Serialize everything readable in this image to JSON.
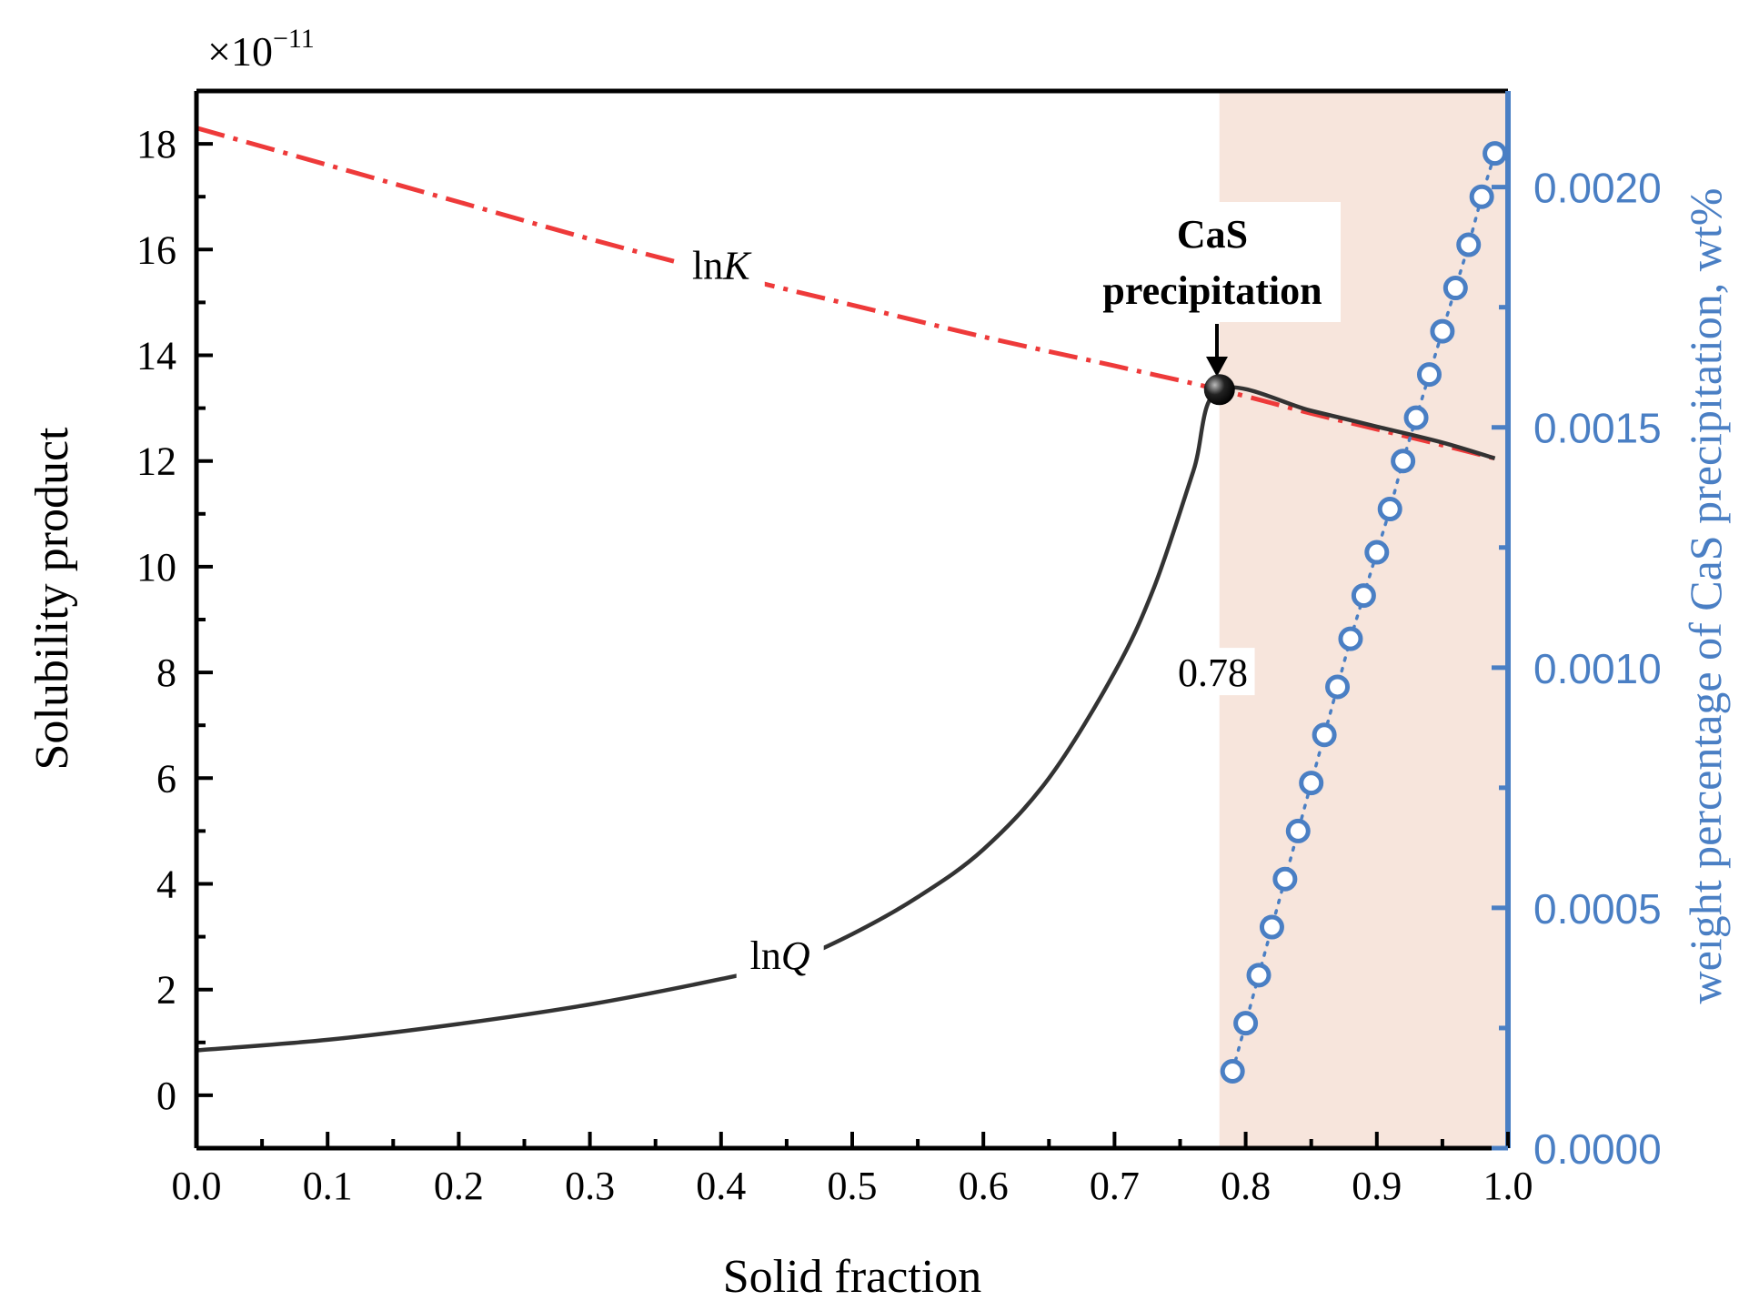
{
  "chart_data": {
    "type": "line",
    "title": "",
    "xlabel": "Solid fraction",
    "ylabel": "Solubility product",
    "ylabel_right": "weight percentage of CaS precipitation, wt%",
    "y_exponent_base": "×10",
    "y_exponent_power": "−11",
    "xlim": [
      0.0,
      1.0
    ],
    "ylim": [
      -1,
      19
    ],
    "ylim_right": [
      0.0,
      0.0022
    ],
    "x_ticks": [
      "0.0",
      "0.1",
      "0.2",
      "0.3",
      "0.4",
      "0.5",
      "0.6",
      "0.7",
      "0.8",
      "0.9",
      "1.0"
    ],
    "x_tick_values": [
      0.0,
      0.1,
      0.2,
      0.3,
      0.4,
      0.5,
      0.6,
      0.7,
      0.8,
      0.9,
      1.0
    ],
    "y_ticks": [
      "0",
      "2",
      "4",
      "6",
      "8",
      "10",
      "12",
      "14",
      "16",
      "18"
    ],
    "y_tick_values": [
      0,
      2,
      4,
      6,
      8,
      10,
      12,
      14,
      16,
      18
    ],
    "y_right_ticks": [
      "0.0000",
      "0.0005",
      "0.0010",
      "0.0015",
      "0.0020"
    ],
    "y_right_tick_values": [
      0.0,
      0.0005,
      0.001,
      0.0015,
      0.002
    ],
    "shaded_region": {
      "x_start": 0.78,
      "x_end": 1.0,
      "color": "#f7e5dc"
    },
    "series": [
      {
        "name": "lnK",
        "label_text": "ln",
        "label_italic": "K",
        "label_at": [
          0.4,
          15.7
        ],
        "style": "dash-dot",
        "color": "#ee3a3a",
        "axis": "left",
        "x": [
          0.0,
          0.1,
          0.2,
          0.3,
          0.4,
          0.5,
          0.6,
          0.7,
          0.78,
          0.85,
          0.9,
          0.95,
          0.99
        ],
        "y": [
          18.3,
          17.6,
          16.9,
          16.2,
          15.55,
          14.95,
          14.35,
          13.8,
          13.35,
          12.9,
          12.6,
          12.3,
          12.05
        ]
      },
      {
        "name": "lnQ",
        "label_text": "ln",
        "label_italic": "Q",
        "label_at": [
          0.445,
          2.65
        ],
        "style": "solid",
        "color": "#333333",
        "axis": "left",
        "x": [
          0.0,
          0.1,
          0.2,
          0.3,
          0.4,
          0.45,
          0.5,
          0.55,
          0.6,
          0.65,
          0.7,
          0.73,
          0.76,
          0.78,
          0.85,
          0.9,
          0.95,
          0.99
        ],
        "y": [
          0.85,
          1.05,
          1.35,
          1.72,
          2.2,
          2.5,
          3.05,
          3.75,
          4.65,
          6.0,
          8.0,
          9.6,
          11.8,
          13.35,
          12.95,
          12.65,
          12.35,
          12.05
        ]
      },
      {
        "name": "CaS precipitation",
        "style": "dotted-circles",
        "color": "#4a7fc4",
        "axis": "right",
        "x": [
          0.79,
          0.8,
          0.81,
          0.82,
          0.83,
          0.84,
          0.85,
          0.86,
          0.87,
          0.88,
          0.89,
          0.9,
          0.91,
          0.92,
          0.93,
          0.94,
          0.95,
          0.96,
          0.97,
          0.98,
          0.99
        ],
        "y": [
          0.00016,
          0.00026,
          0.00036,
          0.00046,
          0.00056,
          0.00066,
          0.00076,
          0.00086,
          0.00096,
          0.00106,
          0.00115,
          0.00124,
          0.00133,
          0.00143,
          0.00152,
          0.00161,
          0.0017,
          0.00179,
          0.00188,
          0.00198,
          0.00207
        ]
      }
    ],
    "annotations": {
      "point": {
        "x": 0.78,
        "y": 13.35
      },
      "cas_line1": "CaS",
      "cas_line2": "precipitation",
      "value_label": "0.78",
      "value_label_at": [
        0.775,
        8.0
      ]
    },
    "grid": false,
    "legend": "none"
  }
}
